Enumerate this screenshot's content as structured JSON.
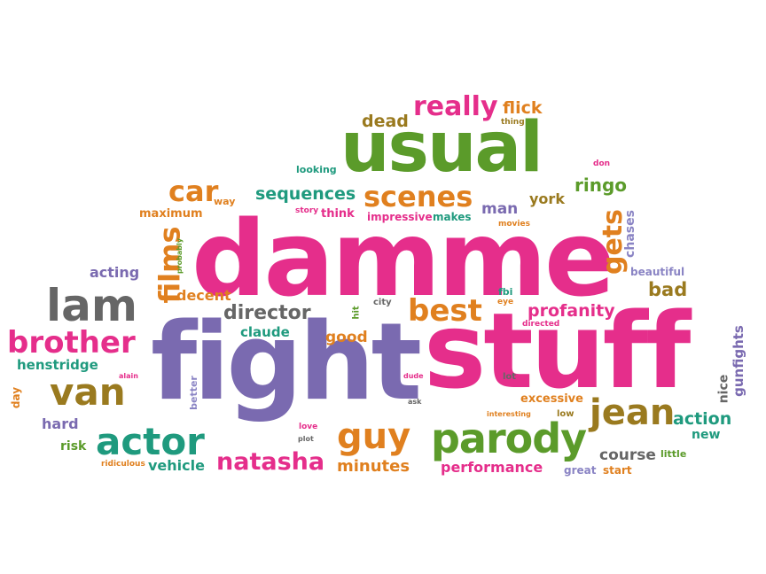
{
  "palette": {
    "pink": "#e52e8b",
    "green": "#5b9b2a",
    "purple": "#7a6ab0",
    "orange": "#e0801f",
    "teal": "#1f9a7e",
    "olive": "#9a7a1f",
    "gray": "#666666",
    "lavender": "#8a84c4"
  },
  "words": [
    {
      "text": "damme",
      "color": "#e52e8b"
    },
    {
      "text": "fight",
      "color": "#7a6ab0"
    },
    {
      "text": "stuff",
      "color": "#e52e8b"
    },
    {
      "text": "usual",
      "color": "#5b9b2a"
    },
    {
      "text": "lam",
      "color": "#666666"
    },
    {
      "text": "parody",
      "color": "#5b9b2a"
    },
    {
      "text": "van",
      "color": "#9a7a1f"
    },
    {
      "text": "actor",
      "color": "#1f9a7e"
    },
    {
      "text": "brother",
      "color": "#e52e8b"
    },
    {
      "text": "guy",
      "color": "#e0801f"
    },
    {
      "text": "jean",
      "color": "#9a7a1f"
    },
    {
      "text": "scenes",
      "color": "#e0801f"
    },
    {
      "text": "best",
      "color": "#e0801f"
    },
    {
      "text": "films",
      "color": "#e0801f"
    },
    {
      "text": "gets",
      "color": "#e0801f"
    },
    {
      "text": "car",
      "color": "#e0801f"
    },
    {
      "text": "really",
      "color": "#e52e8b"
    },
    {
      "text": "natasha",
      "color": "#e52e8b"
    },
    {
      "text": "director",
      "color": "#666666"
    },
    {
      "text": "profanity",
      "color": "#e52e8b"
    },
    {
      "text": "sequences",
      "color": "#1f9a7e"
    },
    {
      "text": "ringo",
      "color": "#5b9b2a"
    },
    {
      "text": "man",
      "color": "#7a6ab0"
    },
    {
      "text": "flick",
      "color": "#e0801f"
    },
    {
      "text": "dead",
      "color": "#9a7a1f"
    },
    {
      "text": "bad",
      "color": "#9a7a1f"
    },
    {
      "text": "action",
      "color": "#1f9a7e"
    },
    {
      "text": "performance",
      "color": "#e52e8b"
    },
    {
      "text": "course",
      "color": "#666666"
    },
    {
      "text": "minutes",
      "color": "#e0801f"
    },
    {
      "text": "vehicle",
      "color": "#1f9a7e"
    },
    {
      "text": "good",
      "color": "#e0801f"
    },
    {
      "text": "acting",
      "color": "#7a6ab0"
    },
    {
      "text": "decent",
      "color": "#e0801f"
    },
    {
      "text": "claude",
      "color": "#1f9a7e"
    },
    {
      "text": "henstridge",
      "color": "#1f9a7e"
    },
    {
      "text": "hard",
      "color": "#7a6ab0"
    },
    {
      "text": "risk",
      "color": "#5b9b2a"
    },
    {
      "text": "york",
      "color": "#9a7a1f"
    },
    {
      "text": "gunfights",
      "color": "#7a6ab0"
    },
    {
      "text": "chases",
      "color": "#8a84c4"
    },
    {
      "text": "nice",
      "color": "#666666"
    },
    {
      "text": "new",
      "color": "#1f9a7e"
    },
    {
      "text": "excessive",
      "color": "#e0801f"
    },
    {
      "text": "maximum",
      "color": "#e0801f"
    },
    {
      "text": "impressive",
      "color": "#e52e8b"
    },
    {
      "text": "think",
      "color": "#e52e8b"
    },
    {
      "text": "makes",
      "color": "#1f9a7e"
    },
    {
      "text": "beautiful",
      "color": "#8a84c4"
    },
    {
      "text": "great",
      "color": "#8a84c4"
    },
    {
      "text": "start",
      "color": "#e0801f"
    },
    {
      "text": "little",
      "color": "#5b9b2a"
    },
    {
      "text": "day",
      "color": "#e0801f"
    },
    {
      "text": "better",
      "color": "#8a84c4"
    },
    {
      "text": "looking",
      "color": "#1f9a7e"
    },
    {
      "text": "way",
      "color": "#e0801f"
    },
    {
      "text": "story",
      "color": "#e52e8b"
    },
    {
      "text": "movies",
      "color": "#e0801f"
    },
    {
      "text": "probably",
      "color": "#5b9b2a"
    },
    {
      "text": "thing",
      "color": "#9a7a1f"
    },
    {
      "text": "don",
      "color": "#e52e8b"
    },
    {
      "text": "fbi",
      "color": "#1f9a7e"
    },
    {
      "text": "eye",
      "color": "#e0801f"
    },
    {
      "text": "directed",
      "color": "#e52e8b"
    },
    {
      "text": "hit",
      "color": "#5b9b2a"
    },
    {
      "text": "city",
      "color": "#666666"
    },
    {
      "text": "alain",
      "color": "#e52e8b"
    },
    {
      "text": "dude",
      "color": "#e52e8b"
    },
    {
      "text": "lot",
      "color": "#666666"
    },
    {
      "text": "ask",
      "color": "#666666"
    },
    {
      "text": "love",
      "color": "#e52e8b"
    },
    {
      "text": "plot",
      "color": "#666666"
    },
    {
      "text": "interesting",
      "color": "#e0801f"
    },
    {
      "text": "low",
      "color": "#9a7a1f"
    },
    {
      "text": "ridiculous",
      "color": "#e0801f"
    }
  ]
}
